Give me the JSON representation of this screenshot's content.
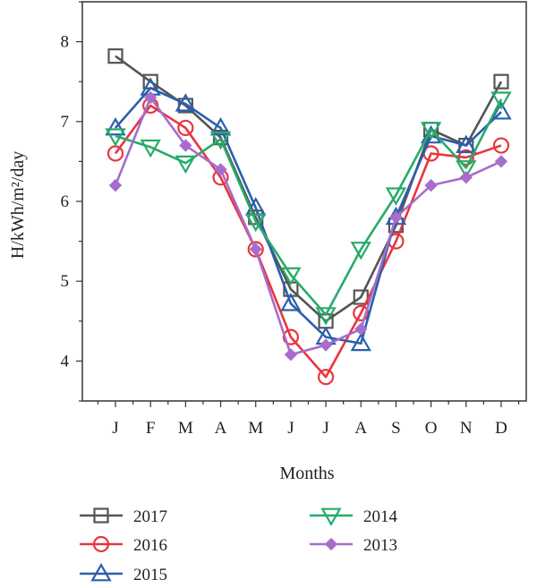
{
  "chart_data": {
    "type": "line",
    "xlabel": "Months",
    "ylabel": "H/kWh/m²/day",
    "categories": [
      "J",
      "F",
      "M",
      "A",
      "M",
      "J",
      "J",
      "A",
      "S",
      "O",
      "N",
      "D"
    ],
    "ylim": [
      3.5,
      8.5
    ],
    "yticks": [
      4,
      5,
      6,
      7,
      8
    ],
    "grid": false,
    "legend_position": "bottom",
    "series": [
      {
        "name": "2017",
        "color": "#555555",
        "marker": "square",
        "values": [
          7.82,
          7.5,
          7.2,
          6.8,
          5.8,
          4.9,
          4.5,
          4.8,
          5.7,
          6.9,
          6.7,
          7.5
        ]
      },
      {
        "name": "2016",
        "color": "#e8363d",
        "marker": "circle",
        "values": [
          6.6,
          7.2,
          6.92,
          6.3,
          5.4,
          4.3,
          3.8,
          4.6,
          5.5,
          6.6,
          6.55,
          6.7
        ]
      },
      {
        "name": "2015",
        "color": "#2a5fad",
        "marker": "triangle-up",
        "values": [
          6.92,
          7.42,
          7.22,
          6.92,
          5.92,
          4.72,
          4.3,
          4.22,
          5.8,
          6.82,
          6.7,
          7.12
        ]
      },
      {
        "name": "2014",
        "color": "#27ab6a",
        "marker": "triangle-down",
        "values": [
          6.82,
          6.68,
          6.48,
          6.78,
          5.75,
          5.08,
          4.58,
          5.4,
          6.08,
          6.9,
          6.42,
          7.28
        ]
      },
      {
        "name": "2013",
        "color": "#a76ccc",
        "marker": "diamond",
        "values": [
          6.2,
          7.3,
          6.7,
          6.4,
          5.4,
          4.08,
          4.2,
          4.4,
          5.8,
          6.2,
          6.3,
          6.5
        ]
      }
    ]
  }
}
